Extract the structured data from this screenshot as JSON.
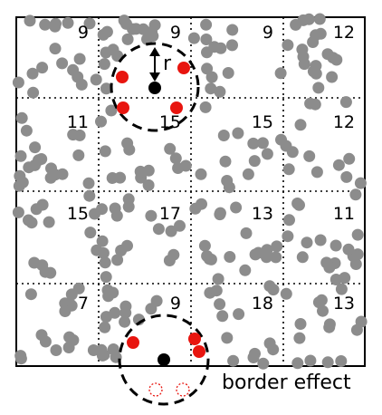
{
  "grid": {
    "rows": 4,
    "cols": 4,
    "counts": [
      [
        "9",
        "9",
        "9",
        "12"
      ],
      [
        "11",
        "15",
        "15",
        "12"
      ],
      [
        "15",
        "17",
        "13",
        "11"
      ],
      [
        "7",
        "9",
        "18",
        "13"
      ]
    ]
  },
  "labels": {
    "radius": "r",
    "border_effect": "border effect"
  },
  "colors": {
    "point": "#8c8c8c",
    "neighbor": "#e8150f",
    "center": "#000000",
    "border": "#000000"
  }
}
